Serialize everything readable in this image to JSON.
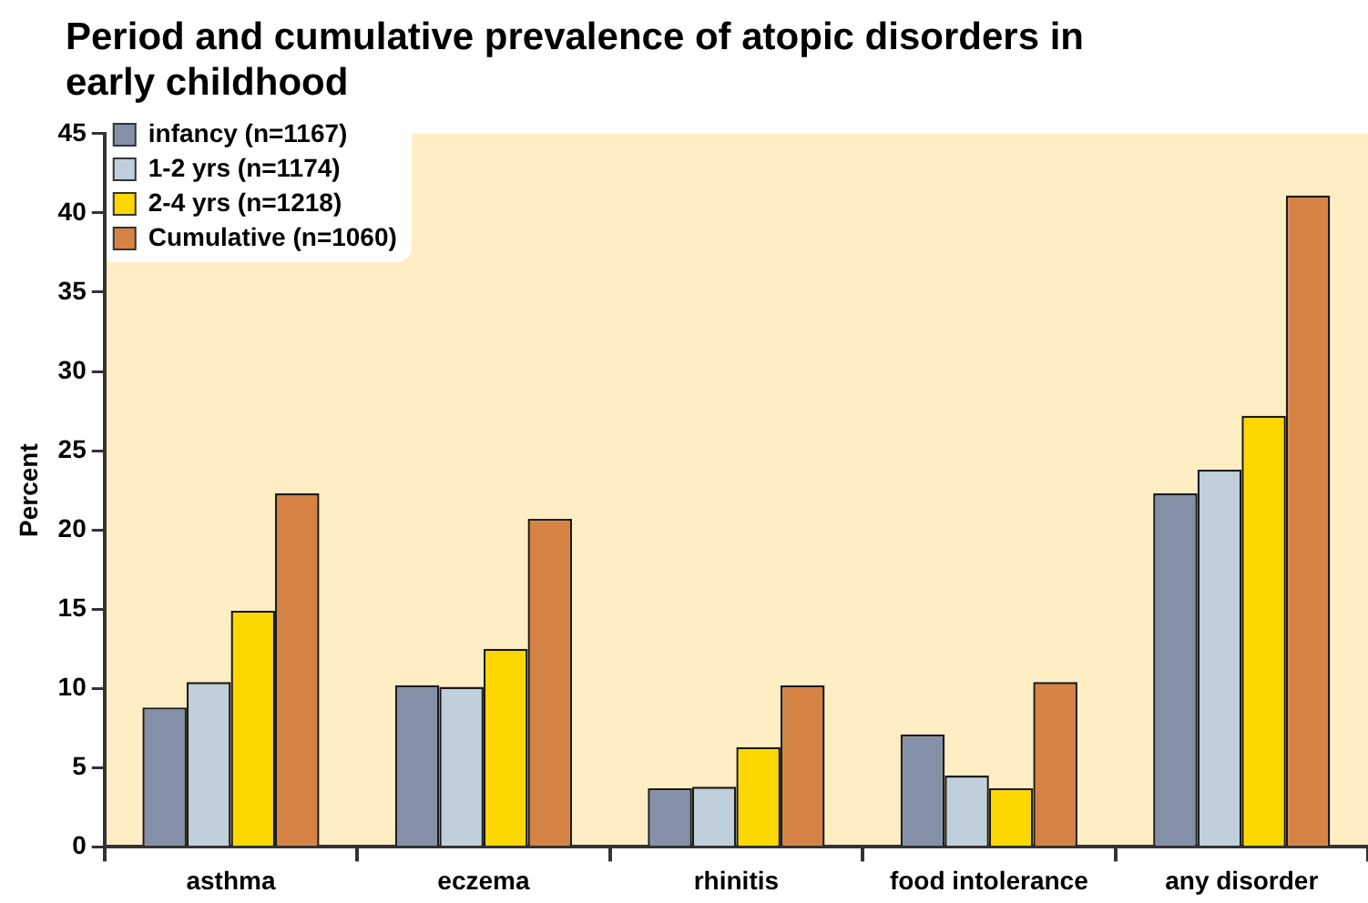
{
  "chart_data": {
    "type": "bar",
    "title": "Period and cumulative prevalence of atopic disorders in early childhood",
    "ylabel": "Percent",
    "categories": [
      "asthma",
      "eczema",
      "rhinitis",
      "food intolerance",
      "any disorder"
    ],
    "series": [
      {
        "name": "infancy (n=1167)",
        "color": "#8490a8",
        "values": [
          8.8,
          10.2,
          3.7,
          7.1,
          22.3
        ]
      },
      {
        "name": "1-2 yrs (n=1174)",
        "color": "#bfd0dc",
        "values": [
          10.4,
          10.1,
          3.8,
          4.5,
          23.8
        ]
      },
      {
        "name": "2-4 yrs (n=1218)",
        "color": "#ffd700",
        "values": [
          14.9,
          12.5,
          6.3,
          3.7,
          27.2
        ]
      },
      {
        "name": "Cumulative (n=1060)",
        "color": "#d58345",
        "values": [
          22.3,
          20.7,
          10.2,
          10.4,
          41.1
        ]
      }
    ],
    "ylim": [
      0,
      45
    ],
    "yticks": [
      0,
      5,
      10,
      15,
      20,
      25,
      30,
      35,
      40,
      45
    ],
    "grid": false,
    "legend": "top left"
  }
}
